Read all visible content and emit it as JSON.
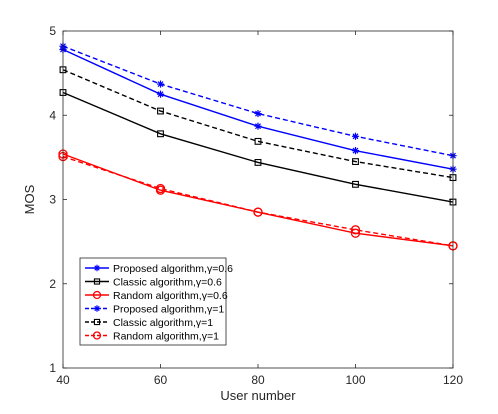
{
  "chart_data": {
    "type": "line",
    "title": "",
    "xlabel": "User number",
    "ylabel": "MOS",
    "x": [
      40,
      60,
      80,
      100,
      120
    ],
    "xticks": [
      "40",
      "60",
      "80",
      "100",
      "120"
    ],
    "yticks": [
      "1",
      "2",
      "3",
      "4",
      "5"
    ],
    "xlim": [
      40,
      120
    ],
    "ylim": [
      1,
      5
    ],
    "grid": false,
    "legend_position": "bottom-left",
    "series": [
      {
        "name": "Proposed algorithm,γ=0.6",
        "values": [
          4.78,
          4.25,
          3.87,
          3.58,
          3.36
        ],
        "color": "#0000ff",
        "dash": "solid",
        "marker": "asterisk"
      },
      {
        "name": "Classic algorithm,γ=0.6",
        "values": [
          4.27,
          3.78,
          3.44,
          3.18,
          2.97
        ],
        "color": "#000000",
        "dash": "solid",
        "marker": "square"
      },
      {
        "name": "Random algorithm,γ=0.6",
        "values": [
          3.54,
          3.11,
          2.85,
          2.6,
          2.45
        ],
        "color": "#ff0000",
        "dash": "solid",
        "marker": "circle"
      },
      {
        "name": "Proposed algorithm,γ=1",
        "values": [
          4.82,
          4.37,
          4.02,
          3.75,
          3.52
        ],
        "color": "#0000ff",
        "dash": "dashed",
        "marker": "asterisk"
      },
      {
        "name": "Classic algorithm,γ=1",
        "values": [
          4.54,
          4.05,
          3.69,
          3.45,
          3.26
        ],
        "color": "#000000",
        "dash": "dashed",
        "marker": "square"
      },
      {
        "name": "Random algorithm,γ=1",
        "values": [
          3.51,
          3.13,
          2.85,
          2.64,
          2.45
        ],
        "color": "#ff0000",
        "dash": "dashed",
        "marker": "circle"
      }
    ]
  }
}
